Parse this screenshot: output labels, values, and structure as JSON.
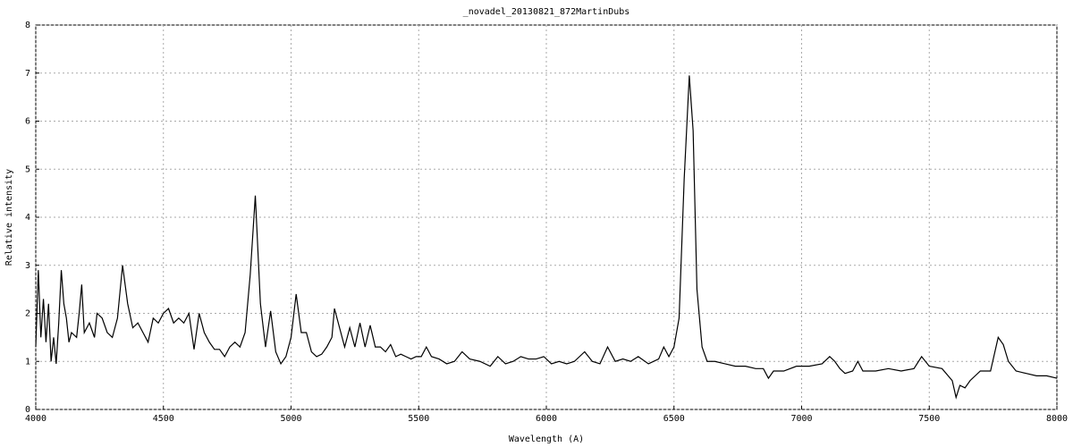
{
  "chart_data": {
    "type": "line",
    "title": "_novadel_20130821_872MartinDubs",
    "x_label": "Wavelength (A)",
    "y_label": "Relative intensity",
    "xlim": [
      4000,
      8000
    ],
    "ylim": [
      0,
      8
    ],
    "xticks": [
      4000,
      4500,
      5000,
      5500,
      6000,
      6500,
      7000,
      7500,
      8000
    ],
    "yticks": [
      0,
      1,
      2,
      3,
      4,
      5,
      6,
      7,
      8
    ],
    "grid": true,
    "x": [
      4000,
      4010,
      4020,
      4030,
      4040,
      4050,
      4060,
      4070,
      4080,
      4090,
      4100,
      4110,
      4120,
      4130,
      4140,
      4160,
      4170,
      4180,
      4190,
      4210,
      4230,
      4240,
      4260,
      4280,
      4300,
      4320,
      4340,
      4360,
      4380,
      4400,
      4420,
      4440,
      4460,
      4480,
      4500,
      4520,
      4540,
      4560,
      4580,
      4600,
      4620,
      4640,
      4660,
      4680,
      4700,
      4720,
      4740,
      4760,
      4780,
      4800,
      4820,
      4840,
      4860,
      4880,
      4900,
      4920,
      4940,
      4960,
      4980,
      5000,
      5020,
      5040,
      5060,
      5080,
      5100,
      5120,
      5140,
      5160,
      5170,
      5190,
      5210,
      5230,
      5250,
      5270,
      5290,
      5310,
      5330,
      5350,
      5370,
      5390,
      5410,
      5430,
      5450,
      5470,
      5490,
      5510,
      5530,
      5550,
      5580,
      5610,
      5640,
      5670,
      5700,
      5740,
      5780,
      5810,
      5840,
      5870,
      5900,
      5930,
      5960,
      5990,
      6020,
      6050,
      6080,
      6110,
      6150,
      6180,
      6210,
      6240,
      6270,
      6300,
      6330,
      6360,
      6400,
      6440,
      6460,
      6480,
      6500,
      6520,
      6540,
      6560,
      6575,
      6590,
      6610,
      6630,
      6660,
      6700,
      6740,
      6780,
      6820,
      6850,
      6870,
      6890,
      6930,
      6980,
      7030,
      7080,
      7110,
      7130,
      7150,
      7170,
      7200,
      7220,
      7240,
      7290,
      7340,
      7390,
      7440,
      7470,
      7500,
      7550,
      7590,
      7605,
      7620,
      7640,
      7660,
      7700,
      7740,
      7770,
      7790,
      7810,
      7840,
      7880,
      7920,
      7960,
      8000
    ],
    "series": [
      {
        "name": "spectrum",
        "color": "#000000",
        "values": [
          1.3,
          2.9,
          1.5,
          2.3,
          1.4,
          2.2,
          1.0,
          1.5,
          0.95,
          1.8,
          2.9,
          2.2,
          1.9,
          1.4,
          1.6,
          1.5,
          2.0,
          2.6,
          1.6,
          1.8,
          1.5,
          2.0,
          1.9,
          1.6,
          1.5,
          1.9,
          3.0,
          2.2,
          1.7,
          1.8,
          1.6,
          1.4,
          1.9,
          1.8,
          2.0,
          2.1,
          1.8,
          1.9,
          1.8,
          2.0,
          1.25,
          2.0,
          1.6,
          1.4,
          1.25,
          1.25,
          1.1,
          1.3,
          1.4,
          1.3,
          1.6,
          2.8,
          4.45,
          2.2,
          1.3,
          2.05,
          1.2,
          0.95,
          1.1,
          1.5,
          2.4,
          1.6,
          1.6,
          1.2,
          1.1,
          1.15,
          1.3,
          1.5,
          2.1,
          1.7,
          1.3,
          1.7,
          1.3,
          1.8,
          1.3,
          1.75,
          1.3,
          1.3,
          1.2,
          1.35,
          1.1,
          1.15,
          1.1,
          1.05,
          1.1,
          1.1,
          1.3,
          1.1,
          1.05,
          0.95,
          1.0,
          1.2,
          1.05,
          1.0,
          0.9,
          1.1,
          0.95,
          1.0,
          1.1,
          1.05,
          1.05,
          1.1,
          0.95,
          1.0,
          0.95,
          1.0,
          1.2,
          1.0,
          0.95,
          1.3,
          1.0,
          1.05,
          1.0,
          1.1,
          0.95,
          1.05,
          1.3,
          1.1,
          1.3,
          1.9,
          4.8,
          6.95,
          5.8,
          2.5,
          1.3,
          1.0,
          1.0,
          0.95,
          0.9,
          0.9,
          0.85,
          0.85,
          0.65,
          0.8,
          0.8,
          0.9,
          0.9,
          0.95,
          1.1,
          1.0,
          0.85,
          0.75,
          0.8,
          1.0,
          0.8,
          0.8,
          0.85,
          0.8,
          0.85,
          1.1,
          0.9,
          0.85,
          0.6,
          0.25,
          0.5,
          0.45,
          0.6,
          0.8,
          0.8,
          1.5,
          1.35,
          1.0,
          0.8,
          0.75,
          0.7,
          0.7,
          0.65
        ]
      }
    ]
  }
}
